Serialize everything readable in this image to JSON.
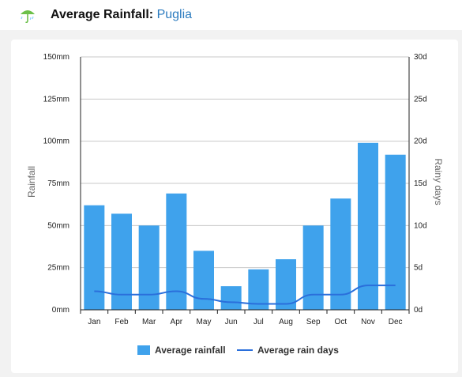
{
  "header": {
    "title_prefix": "Average Rainfall: ",
    "region": "Puglia",
    "icon": "umbrella-icon"
  },
  "colors": {
    "bar": "#3fa2ec",
    "line": "#2a6fdb",
    "grid": "#c8c8c8",
    "title_region": "#2b7bbf"
  },
  "chart_data": {
    "type": "bar",
    "categories": [
      "Jan",
      "Feb",
      "Mar",
      "Apr",
      "May",
      "Jun",
      "Jul",
      "Aug",
      "Sep",
      "Oct",
      "Nov",
      "Dec"
    ],
    "series": [
      {
        "name": "Average rainfall",
        "type": "bar",
        "axis": "left",
        "values": [
          62,
          57,
          50,
          69,
          35,
          14,
          24,
          30,
          50,
          66,
          99,
          92
        ]
      },
      {
        "name": "Average rain days",
        "type": "line",
        "axis": "right",
        "values": [
          2.2,
          1.8,
          1.8,
          2.2,
          1.3,
          0.9,
          0.7,
          0.7,
          1.8,
          1.8,
          2.9,
          2.9
        ]
      }
    ],
    "ylabel": "Rainfall",
    "y2label": "Rainy days",
    "ylim": [
      0,
      150
    ],
    "y2lim": [
      0,
      30
    ],
    "yticks": [
      "0mm",
      "25mm",
      "50mm",
      "75mm",
      "100mm",
      "125mm",
      "150mm"
    ],
    "y2ticks": [
      "0d",
      "5d",
      "10d",
      "15d",
      "20d",
      "25d",
      "30d"
    ],
    "grid": true,
    "legend_position": "bottom-center"
  }
}
